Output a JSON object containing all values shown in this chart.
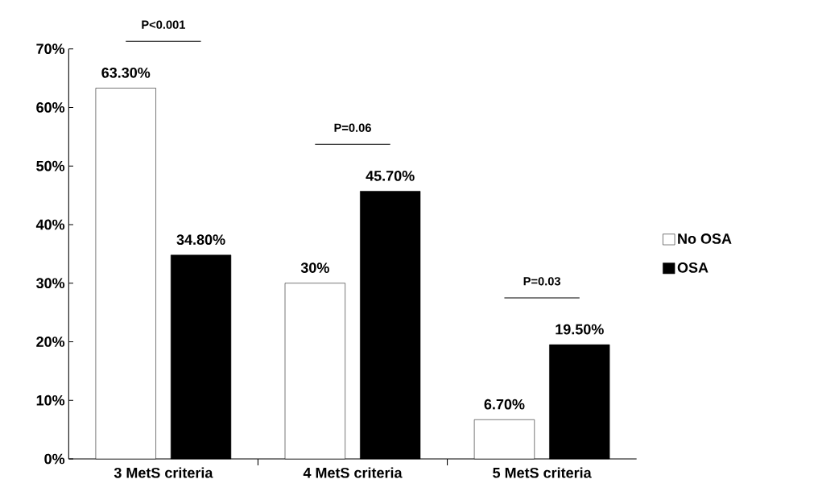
{
  "chart_data": {
    "type": "bar",
    "categories": [
      "3 MetS criteria",
      "4 MetS criteria",
      "5 MetS criteria"
    ],
    "series": [
      {
        "name": "No OSA",
        "color": "#ffffff",
        "values": [
          63.3,
          30,
          6.7
        ],
        "value_labels": [
          "63.30%",
          "30%",
          "6.70%"
        ]
      },
      {
        "name": "OSA",
        "color": "#000000",
        "values": [
          34.8,
          45.7,
          19.5
        ],
        "value_labels": [
          "34.80%",
          "45.70%",
          "19.50%"
        ]
      }
    ],
    "ylim": [
      0,
      70
    ],
    "yticks": [
      {
        "value": 0,
        "label": "0%"
      },
      {
        "value": 10,
        "label": "10%"
      },
      {
        "value": 20,
        "label": "20%"
      },
      {
        "value": 30,
        "label": "30%"
      },
      {
        "value": 40,
        "label": "40%"
      },
      {
        "value": 50,
        "label": "50%"
      },
      {
        "value": 60,
        "label": "60%"
      },
      {
        "value": 70,
        "label": "70%"
      }
    ],
    "annotations": [
      "P<0.001",
      "P=0.06",
      "P=0.03"
    ],
    "legend": "right",
    "grid": false
  }
}
